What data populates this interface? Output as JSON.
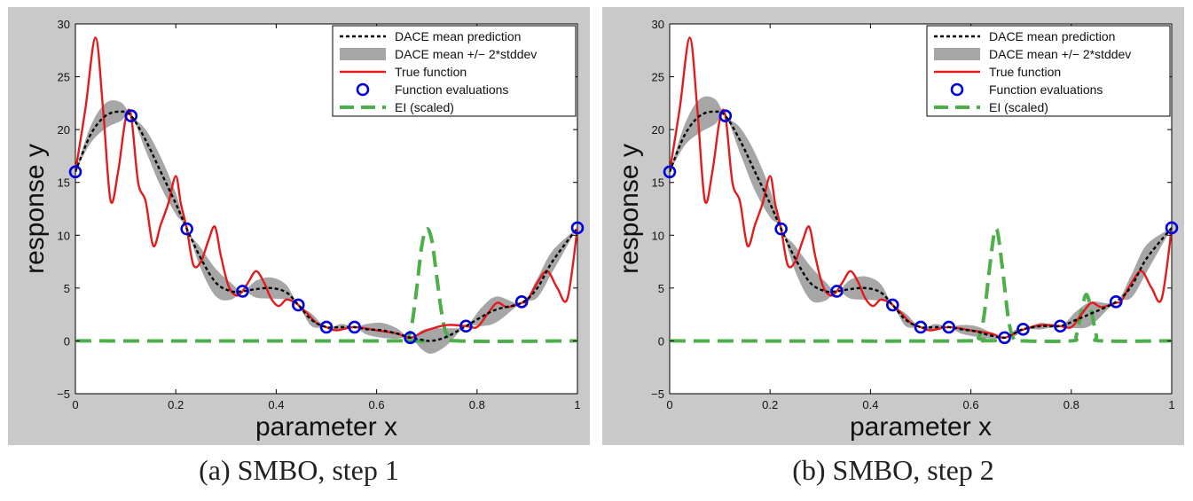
{
  "chart_data": [
    {
      "type": "line",
      "caption": "(a)  SMBO, step 1",
      "xlabel": "parameter x",
      "ylabel": "response y",
      "xlim": [
        0,
        1
      ],
      "ylim": [
        -5,
        30
      ],
      "xticks": [
        "0",
        "0.2",
        "0.4",
        "0.6",
        "0.8",
        "1"
      ],
      "yticks": [
        "−5",
        "0",
        "5",
        "10",
        "15",
        "20",
        "25",
        "30"
      ],
      "legend_position": "top-right",
      "legend": [
        "DACE mean prediction",
        "DACE mean +/− 2*stddev",
        "True function",
        "Function evaluations",
        "EI (scaled)"
      ],
      "series": [
        {
          "name": "DACE mean prediction",
          "style": "dotted",
          "color": "#000000",
          "x": [
            0,
            0.03,
            0.06,
            0.09,
            0.111,
            0.14,
            0.17,
            0.2,
            0.222,
            0.25,
            0.28,
            0.31,
            0.333,
            0.36,
            0.39,
            0.42,
            0.444,
            0.47,
            0.5,
            0.53,
            0.556,
            0.58,
            0.61,
            0.64,
            0.667,
            0.69,
            0.71,
            0.74,
            0.778,
            0.81,
            0.84,
            0.889,
            0.92,
            0.95,
            1.0
          ],
          "y": [
            16,
            19.5,
            21.3,
            21.7,
            21.3,
            19,
            16,
            13,
            10.6,
            7.8,
            5.5,
            4.7,
            4.7,
            4.9,
            5.0,
            4.6,
            3.4,
            2.0,
            1.3,
            1.3,
            1.3,
            1.1,
            1.0,
            0.7,
            0.3,
            0.1,
            0.0,
            0.4,
            1.4,
            2.3,
            3.0,
            3.6,
            5.0,
            7.5,
            10.7
          ]
        },
        {
          "name": "DACE mean +/− 2*stddev",
          "style": "band",
          "color": "#a6a6a6",
          "x": [
            0,
            0.03,
            0.06,
            0.09,
            0.111,
            0.14,
            0.17,
            0.2,
            0.222,
            0.25,
            0.28,
            0.31,
            0.333,
            0.36,
            0.39,
            0.42,
            0.444,
            0.47,
            0.5,
            0.53,
            0.556,
            0.58,
            0.61,
            0.64,
            0.667,
            0.69,
            0.71,
            0.74,
            0.778,
            0.81,
            0.84,
            0.889,
            0.92,
            0.95,
            1.0
          ],
          "half_width": [
            0,
            0.8,
            1.2,
            0.9,
            0,
            1.0,
            1.4,
            1.0,
            0,
            1.0,
            1.3,
            0.8,
            0,
            0.8,
            1.0,
            0.7,
            0,
            0.6,
            0,
            0.3,
            0,
            0.5,
            0.7,
            0.5,
            0,
            0.9,
            1.2,
            0.8,
            0,
            0.9,
            1.2,
            0,
            0.9,
            1.0,
            0
          ]
        },
        {
          "name": "True function",
          "style": "solid",
          "color": "#e41a1c",
          "x": [
            0,
            0.02,
            0.04,
            0.055,
            0.07,
            0.085,
            0.1,
            0.111,
            0.125,
            0.14,
            0.155,
            0.17,
            0.185,
            0.2,
            0.21,
            0.222,
            0.235,
            0.25,
            0.265,
            0.278,
            0.29,
            0.305,
            0.32,
            0.333,
            0.345,
            0.36,
            0.375,
            0.39,
            0.405,
            0.42,
            0.435,
            0.444,
            0.46,
            0.48,
            0.5,
            0.52,
            0.556,
            0.6,
            0.64,
            0.667,
            0.7,
            0.74,
            0.778,
            0.8,
            0.82,
            0.84,
            0.86,
            0.889,
            0.9,
            0.92,
            0.94,
            0.96,
            0.98,
            1.0
          ],
          "y": [
            16,
            22,
            28.7,
            22,
            13.3,
            16,
            21,
            21.3,
            15,
            13.2,
            9,
            11,
            13,
            15.6,
            13,
            10.6,
            7.2,
            7.5,
            9.5,
            10.8,
            8,
            5.2,
            4.3,
            4.7,
            5.6,
            6.6,
            5.6,
            4.0,
            3.3,
            3.9,
            3.7,
            3.4,
            2.7,
            1.7,
            1.3,
            1.0,
            1.3,
            1.0,
            0.7,
            0.3,
            1.0,
            1.5,
            1.4,
            1.3,
            2.5,
            3.6,
            3.2,
            3.6,
            3.8,
            5.5,
            6.6,
            5.0,
            4.0,
            10.7
          ]
        },
        {
          "name": "Function evaluations",
          "style": "markers",
          "color": "#0000dd",
          "x": [
            0,
            0.111,
            0.222,
            0.333,
            0.444,
            0.5,
            0.556,
            0.667,
            0.778,
            0.889,
            1.0
          ],
          "y": [
            16,
            21.3,
            10.6,
            4.7,
            3.4,
            1.3,
            1.3,
            0.3,
            1.4,
            3.7,
            10.7
          ]
        },
        {
          "name": "EI (scaled)",
          "style": "dashed",
          "color": "#4daf4a",
          "x": [
            0,
            0.64,
            0.66,
            0.67,
            0.68,
            0.69,
            0.7,
            0.71,
            0.72,
            0.73,
            0.74,
            0.76,
            1.0
          ],
          "y": [
            0,
            0,
            0.1,
            1.5,
            5,
            9,
            10.6,
            9.5,
            6,
            2.5,
            0.6,
            0,
            0
          ]
        }
      ]
    },
    {
      "type": "line",
      "caption": "(b)  SMBO, step 2",
      "xlabel": "parameter x",
      "ylabel": "response y",
      "xlim": [
        0,
        1
      ],
      "ylim": [
        -5,
        30
      ],
      "xticks": [
        "0",
        "0.2",
        "0.4",
        "0.6",
        "0.8",
        "1"
      ],
      "yticks": [
        "−5",
        "0",
        "5",
        "10",
        "15",
        "20",
        "25",
        "30"
      ],
      "legend_position": "top-right",
      "legend": [
        "DACE mean prediction",
        "DACE mean +/− 2*stddev",
        "True function",
        "Function evaluations",
        "EI (scaled)"
      ],
      "series": [
        {
          "name": "DACE mean prediction",
          "style": "dotted",
          "color": "#000000",
          "x": [
            0,
            0.03,
            0.06,
            0.09,
            0.111,
            0.14,
            0.17,
            0.2,
            0.222,
            0.25,
            0.28,
            0.31,
            0.333,
            0.36,
            0.39,
            0.42,
            0.444,
            0.47,
            0.5,
            0.53,
            0.556,
            0.58,
            0.61,
            0.64,
            0.667,
            0.69,
            0.704,
            0.74,
            0.778,
            0.81,
            0.84,
            0.889,
            0.92,
            0.95,
            1.0
          ],
          "y": [
            16,
            19.5,
            21.3,
            21.7,
            21.3,
            19,
            16,
            13,
            10.6,
            7.8,
            5.5,
            4.7,
            4.7,
            4.9,
            5.0,
            4.6,
            3.4,
            2.0,
            1.3,
            1.3,
            1.3,
            1.1,
            0.9,
            0.5,
            0.3,
            0.8,
            1.1,
            1.4,
            1.4,
            2.0,
            2.6,
            3.7,
            5.2,
            7.8,
            10.7
          ]
        },
        {
          "name": "DACE mean +/− 2*stddev",
          "style": "band",
          "color": "#a6a6a6",
          "x": [
            0,
            0.03,
            0.06,
            0.09,
            0.111,
            0.14,
            0.17,
            0.2,
            0.222,
            0.25,
            0.28,
            0.31,
            0.333,
            0.36,
            0.39,
            0.42,
            0.444,
            0.47,
            0.5,
            0.53,
            0.556,
            0.58,
            0.61,
            0.64,
            0.667,
            0.69,
            0.704,
            0.74,
            0.778,
            0.81,
            0.84,
            0.889,
            0.92,
            0.95,
            1.0
          ],
          "half_width": [
            0,
            1.0,
            1.6,
            1.2,
            0,
            1.2,
            1.8,
            1.3,
            0,
            1.2,
            1.6,
            0.9,
            0,
            0.9,
            1.1,
            0.8,
            0,
            0.6,
            0,
            0.3,
            0,
            0.4,
            0.5,
            0.3,
            0,
            0.3,
            0,
            0.3,
            0,
            0.8,
            1.1,
            0,
            1.1,
            1.3,
            0
          ]
        },
        {
          "name": "True function",
          "style": "solid",
          "color": "#e41a1c",
          "x": [
            0,
            0.02,
            0.04,
            0.055,
            0.07,
            0.085,
            0.1,
            0.111,
            0.125,
            0.14,
            0.155,
            0.17,
            0.185,
            0.2,
            0.21,
            0.222,
            0.235,
            0.25,
            0.265,
            0.278,
            0.29,
            0.305,
            0.32,
            0.333,
            0.345,
            0.36,
            0.375,
            0.39,
            0.405,
            0.42,
            0.435,
            0.444,
            0.46,
            0.48,
            0.5,
            0.52,
            0.556,
            0.6,
            0.64,
            0.667,
            0.7,
            0.74,
            0.778,
            0.8,
            0.82,
            0.84,
            0.86,
            0.889,
            0.9,
            0.92,
            0.94,
            0.96,
            0.98,
            1.0
          ],
          "y": [
            16,
            22,
            28.7,
            22,
            13.3,
            16,
            21,
            21.3,
            15,
            13.2,
            9,
            11,
            13,
            15.6,
            13,
            10.6,
            7.2,
            7.5,
            9.5,
            10.8,
            8,
            5.2,
            4.3,
            4.7,
            5.6,
            6.6,
            5.6,
            4.0,
            3.3,
            3.9,
            3.7,
            3.4,
            2.7,
            1.7,
            1.3,
            1.0,
            1.3,
            1.0,
            0.7,
            0.3,
            1.0,
            1.5,
            1.4,
            1.3,
            2.5,
            3.6,
            3.2,
            3.6,
            3.8,
            5.5,
            6.6,
            5.0,
            4.0,
            10.7
          ]
        },
        {
          "name": "Function evaluations",
          "style": "markers",
          "color": "#0000dd",
          "x": [
            0,
            0.111,
            0.222,
            0.333,
            0.444,
            0.5,
            0.556,
            0.667,
            0.704,
            0.778,
            0.889,
            1.0
          ],
          "y": [
            16,
            21.3,
            10.6,
            4.7,
            3.4,
            1.3,
            1.3,
            0.3,
            1.1,
            1.4,
            3.7,
            10.7
          ]
        },
        {
          "name": "EI (scaled)",
          "style": "dashed",
          "color": "#4daf4a",
          "x": [
            0,
            0.6,
            0.615,
            0.625,
            0.635,
            0.645,
            0.65,
            0.655,
            0.665,
            0.675,
            0.685,
            0.7,
            0.8,
            0.81,
            0.82,
            0.83,
            0.84,
            0.85,
            0.86,
            1.0
          ],
          "y": [
            0,
            0,
            0.3,
            2,
            6,
            9.8,
            10.6,
            9.8,
            6,
            2,
            0.2,
            0,
            0,
            0.5,
            2.8,
            4.4,
            2.8,
            0.5,
            0,
            0
          ]
        }
      ]
    }
  ]
}
